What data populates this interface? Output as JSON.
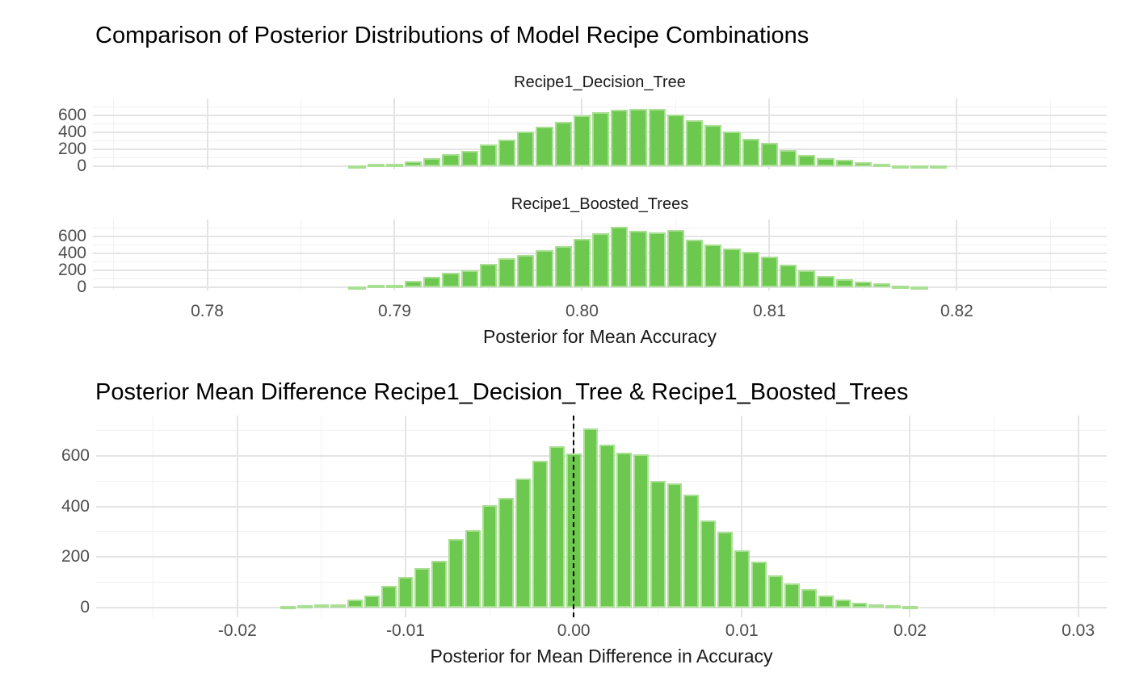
{
  "page": {
    "background": "#ffffff"
  },
  "colors": {
    "bar_fill": "#6cc84f",
    "bar_stroke": "#a9df92",
    "grid_major": "#e4e4e4",
    "grid_minor": "#f1f1f1",
    "tick_text": "#4d4d4d",
    "title_text": "#000000",
    "reference_line": "#000000"
  },
  "chart1": {
    "title": "Comparison of Posterior Distributions of Model Recipe Combinations",
    "x_title": "Posterior for Mean Accuracy",
    "facets": [
      {
        "label": "Recipe1_Decision_Tree"
      },
      {
        "label": "Recipe1_Boosted_Trees"
      }
    ],
    "y_tick_labels": [
      "0",
      "200",
      "400",
      "600"
    ],
    "x_tick_labels": [
      "0.78",
      "0.79",
      "0.80",
      "0.81",
      "0.82"
    ]
  },
  "chart2": {
    "title": "Posterior Mean Difference Recipe1_Decision_Tree & Recipe1_Boosted_Trees",
    "x_title": "Posterior for Mean Difference in Accuracy",
    "y_tick_labels": [
      "0",
      "200",
      "400",
      "600"
    ],
    "x_tick_labels": [
      "-0.02",
      "-0.01",
      "0.00",
      "0.01",
      "0.02",
      "0.03"
    ]
  },
  "chart_data": [
    {
      "type": "bar",
      "subtype": "faceted-histogram",
      "title": "Comparison of Posterior Distributions of Model Recipe Combinations",
      "xlabel": "Posterior for Mean Accuracy",
      "ylabel": "",
      "grid": true,
      "legend": "none",
      "xlim": [
        0.7739,
        0.828
      ],
      "ylim": [
        -40,
        800
      ],
      "x_ticks": [
        0.78,
        0.79,
        0.8,
        0.81,
        0.82
      ],
      "x_tick_labels": [
        "0.78",
        "0.79",
        "0.80",
        "0.81",
        "0.82"
      ],
      "x_minor": [
        0.775,
        0.785,
        0.795,
        0.805,
        0.815,
        0.825
      ],
      "y_major": [
        0,
        200,
        400,
        600
      ],
      "y_tick_labels": [
        "0",
        "200",
        "400",
        "600"
      ],
      "y_minor": [
        100,
        300,
        500,
        700
      ],
      "bin_width": 0.001,
      "series": [
        {
          "name": "Recipe1_Decision_Tree",
          "bin_start": 0.7875,
          "counts": [
            8,
            28,
            30,
            55,
            95,
            140,
            182,
            253,
            316,
            405,
            463,
            526,
            603,
            641,
            667,
            675,
            675,
            612,
            543,
            485,
            405,
            325,
            272,
            189,
            135,
            98,
            70,
            45,
            30,
            12,
            6,
            4
          ]
        },
        {
          "name": "Recipe1_Boosted_Trees",
          "bin_start": 0.7875,
          "counts": [
            8,
            30,
            28,
            72,
            119,
            167,
            199,
            272,
            342,
            380,
            437,
            482,
            571,
            635,
            715,
            665,
            650,
            675,
            558,
            500,
            453,
            420,
            365,
            270,
            195,
            130,
            92,
            68,
            45,
            18,
            6
          ]
        }
      ]
    },
    {
      "type": "bar",
      "subtype": "histogram",
      "title": "Posterior Mean Difference Recipe1_Decision_Tree & Recipe1_Boosted_Trees",
      "xlabel": "Posterior for Mean Difference in Accuracy",
      "ylabel": "",
      "grid": true,
      "legend": "none",
      "xlim": [
        -0.0284,
        0.0317
      ],
      "ylim": [
        -40,
        760
      ],
      "x_ticks": [
        -0.02,
        -0.01,
        0.0,
        0.01,
        0.02,
        0.03
      ],
      "x_tick_labels": [
        "-0.02",
        "-0.01",
        "0.00",
        "0.01",
        "0.02",
        "0.03"
      ],
      "x_minor": [
        -0.025,
        -0.015,
        -0.005,
        0.005,
        0.015,
        0.025
      ],
      "y_major": [
        0,
        200,
        400,
        600
      ],
      "y_tick_labels": [
        "0",
        "200",
        "400",
        "600"
      ],
      "y_minor": [
        100,
        300,
        500,
        700
      ],
      "bin_width": 0.001,
      "reference_line": {
        "x": 0.0,
        "style": "dashed",
        "color": "#000000"
      },
      "series": [
        {
          "name": "difference",
          "bin_start": -0.0175,
          "counts": [
            5,
            8,
            10,
            12,
            30,
            45,
            85,
            120,
            155,
            185,
            270,
            305,
            405,
            435,
            510,
            580,
            640,
            610,
            710,
            645,
            612,
            608,
            500,
            490,
            445,
            345,
            300,
            225,
            180,
            125,
            95,
            72,
            45,
            30,
            18,
            10,
            8,
            5
          ]
        }
      ]
    }
  ]
}
